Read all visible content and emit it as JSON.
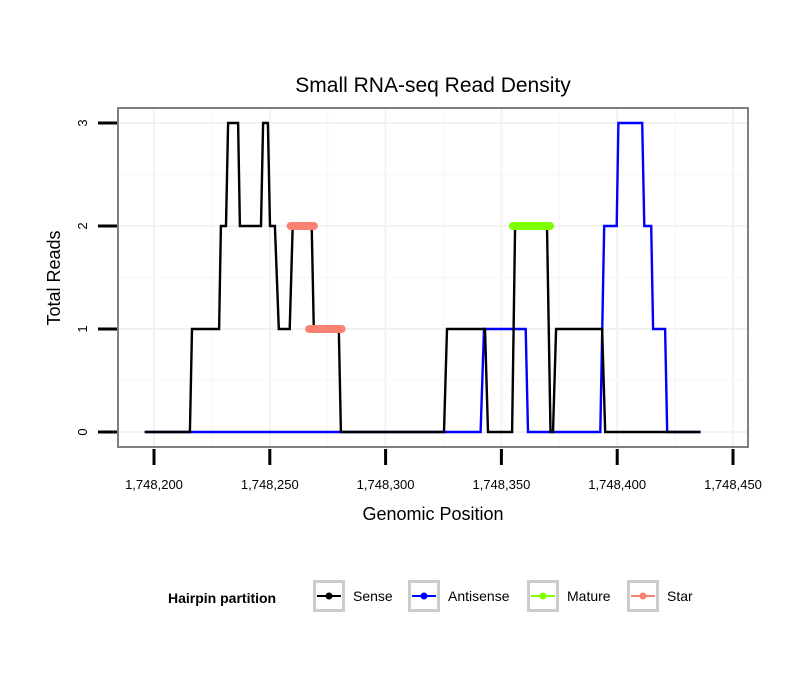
{
  "chart_data": {
    "type": "line",
    "title": "Small RNA-seq Read Density",
    "xlabel": "Genomic Position",
    "ylabel": "Total Reads",
    "xlim": [
      1748192,
      1748458
    ],
    "ylim": [
      -0.15,
      3.15
    ],
    "x_ticks": [
      1748200,
      1748250,
      1748300,
      1748350,
      1748400,
      1748450
    ],
    "x_tick_labels": [
      "1,748,200",
      "1,748,250",
      "1,748,300",
      "1,748,350",
      "1,748,400",
      "1,748,450"
    ],
    "y_ticks": [
      0,
      1,
      2,
      3
    ],
    "y_tick_labels": [
      "0",
      "1",
      "2",
      "3"
    ],
    "grid": true,
    "legend": {
      "title": "Hairpin partition",
      "position": "bottom",
      "entries": [
        {
          "label": "Sense",
          "color": "#000000"
        },
        {
          "label": "Antisense",
          "color": "#0000ff"
        },
        {
          "label": "Mature",
          "color": "#7fff00"
        },
        {
          "label": "Star",
          "color": "#fa8072"
        }
      ]
    },
    "series": [
      {
        "name": "Antisense",
        "color": "#0000ff",
        "points": [
          [
            1748196,
            0
          ],
          [
            1748341,
            0
          ],
          [
            1748342.5,
            1
          ],
          [
            1748360.5,
            1
          ],
          [
            1748361.5,
            0
          ],
          [
            1748392.7,
            0
          ],
          [
            1748394.4,
            2
          ],
          [
            1748399.8,
            2
          ],
          [
            1748400.5,
            3
          ],
          [
            1748410.8,
            3
          ],
          [
            1748411.7,
            2
          ],
          [
            1748414.7,
            2
          ],
          [
            1748415.5,
            1
          ],
          [
            1748420.7,
            1
          ],
          [
            1748421.6,
            0
          ],
          [
            1748436,
            0
          ]
        ]
      },
      {
        "name": "Sense",
        "color": "#000000",
        "points": [
          [
            1748196,
            0
          ],
          [
            1748215.5,
            0
          ],
          [
            1748216.4,
            1
          ],
          [
            1748228.1,
            1
          ],
          [
            1748228.9,
            2
          ],
          [
            1748231.1,
            2
          ],
          [
            1748232,
            3
          ],
          [
            1748236.3,
            3
          ],
          [
            1748237.1,
            2
          ],
          [
            1748246.2,
            2
          ],
          [
            1748247.1,
            3
          ],
          [
            1748249.2,
            3
          ],
          [
            1748250.1,
            2
          ],
          [
            1748252.2,
            2
          ],
          [
            1748253.9,
            1
          ],
          [
            1748258.6,
            1
          ],
          [
            1748259.9,
            2
          ],
          [
            1748268.1,
            2
          ],
          [
            1748269,
            1
          ],
          [
            1748279.8,
            1
          ],
          [
            1748280.7,
            0
          ],
          [
            1748325.2,
            0
          ],
          [
            1748326.5,
            1
          ],
          [
            1748342.9,
            1
          ],
          [
            1748344.2,
            0
          ],
          [
            1748354.6,
            0
          ],
          [
            1748355.9,
            2
          ],
          [
            1748369.7,
            2
          ],
          [
            1748371.2,
            0
          ],
          [
            1748372.3,
            0
          ],
          [
            1748373.6,
            1
          ],
          [
            1748393.5,
            1
          ],
          [
            1748394.8,
            0
          ],
          [
            1748436,
            0
          ]
        ]
      },
      {
        "name": "Mature",
        "color": "#7fff00",
        "segments": [
          [
            [
              1748355,
              2
            ],
            [
              1748371,
              2
            ]
          ]
        ]
      },
      {
        "name": "Star",
        "color": "#fa8072",
        "segments": [
          [
            [
              1748259,
              2
            ],
            [
              1748269,
              2
            ]
          ],
          [
            [
              1748267,
              1
            ],
            [
              1748281,
              1
            ]
          ]
        ]
      }
    ]
  }
}
